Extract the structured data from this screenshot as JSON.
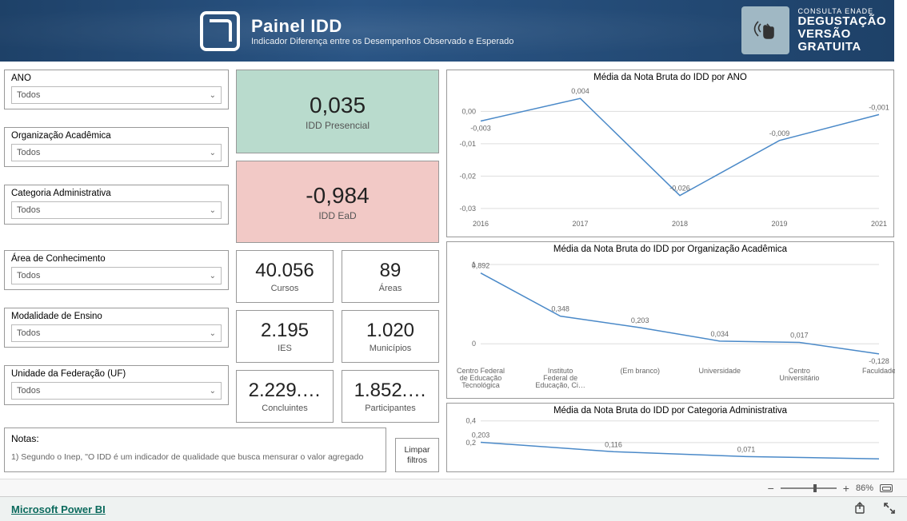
{
  "banner": {
    "title": "Painel IDD",
    "subtitle": "Indicador Diferença entre os Desempenhos Observado e Esperado",
    "promo_small": "CONSULTA ENADE",
    "promo_l1": "DEGUSTAÇÃO",
    "promo_l2": "VERSÃO",
    "promo_l3": "GRATUITA"
  },
  "filters": {
    "ano": {
      "label": "ANO",
      "value": "Todos"
    },
    "org": {
      "label": "Organização Acadêmica",
      "value": "Todos"
    },
    "cat": {
      "label": "Categoria Administrativa",
      "value": "Todos"
    },
    "area": {
      "label": "Área de Conhecimento",
      "value": "Todos"
    },
    "mod": {
      "label": "Modalidade de Ensino",
      "value": "Todos"
    },
    "uf": {
      "label": "Unidade da Federação (UF)",
      "value": "Todos"
    }
  },
  "kpi": {
    "idd_pres": {
      "value": "0,035",
      "label": "IDD Presencial",
      "bg": "#b9dbcd"
    },
    "idd_ead": {
      "value": "-0,984",
      "label": "IDD EaD",
      "bg": "#f2c9c6"
    },
    "cursos": {
      "value": "40.056",
      "label": "Cursos"
    },
    "areas": {
      "value": "89",
      "label": "Áreas"
    },
    "ies": {
      "value": "2.195",
      "label": "IES"
    },
    "municipios": {
      "value": "1.020",
      "label": "Municípios"
    },
    "concluintes": {
      "value": "2.229.…",
      "label": "Concluintes"
    },
    "participantes": {
      "value": "1.852.…",
      "label": "Participantes"
    }
  },
  "charts": {
    "ano": {
      "title": "Média da Nota Bruta  do IDD por ANO",
      "type": "line",
      "categories": [
        "2016",
        "2017",
        "2018",
        "2019",
        "2021"
      ],
      "values": [
        -0.003,
        0.004,
        -0.026,
        -0.009,
        -0.001
      ],
      "labels": [
        "-0,003",
        "0,004",
        "-0,026",
        "-0,009",
        "-0,001"
      ],
      "yticks": [
        0.0,
        -0.01,
        -0.02,
        -0.03
      ],
      "ytick_labels": [
        "0,00",
        "-0,01",
        "-0,02",
        "-0,03"
      ],
      "ylim": [
        -0.032,
        0.007
      ],
      "line_color": "#4a89c8",
      "grid_color": "#dddddd",
      "text_color": "#666666",
      "title_fontsize": 11.5,
      "label_fontsize": 9
    },
    "org": {
      "title": "Média da Nota Bruta  do IDD por Organização Acadêmica",
      "type": "line",
      "categories": [
        "Centro Federal de Educação Tecnológica",
        "Instituto Federal de Educação, Ci…",
        "(Em branco)",
        "Universidade",
        "Centro Universitário",
        "Faculdade"
      ],
      "values": [
        0.892,
        0.348,
        0.203,
        0.034,
        0.017,
        -0.128
      ],
      "labels": [
        "0,892",
        "0,348",
        "0,203",
        "0,034",
        "0,017",
        "-0,128"
      ],
      "yticks": [
        1,
        0
      ],
      "ytick_labels": [
        "1",
        "0"
      ],
      "ylim": [
        -0.25,
        1.05
      ],
      "line_color": "#4a89c8",
      "grid_color": "#dddddd",
      "text_color": "#666666",
      "title_fontsize": 11.5,
      "label_fontsize": 9
    },
    "cat": {
      "title": "Média da Nota Bruta  do IDD por Categoria Administrativa",
      "type": "line",
      "categories": [
        "",
        "",
        "",
        ""
      ],
      "values": [
        0.203,
        0.116,
        0.071,
        0.05
      ],
      "labels": [
        "0,203",
        "0,116",
        "0,071",
        ""
      ],
      "yticks": [
        0.4,
        0.2
      ],
      "ytick_labels": [
        "0,4",
        "0,2"
      ],
      "ylim": [
        0.0,
        0.42
      ],
      "line_color": "#4a89c8",
      "grid_color": "#dddddd",
      "text_color": "#666666",
      "title_fontsize": 11.5,
      "label_fontsize": 9
    }
  },
  "notes": {
    "heading": "Notas:",
    "body": "1) Segundo o Inep, \"O IDD é um indicador de qualidade que busca mensurar o valor agregado"
  },
  "clear_filters": "Limpar filtros",
  "toolbar": {
    "zoom_pct": "86%",
    "zoom_pos": 0.62
  },
  "footer": {
    "brand": "Microsoft Power BI"
  }
}
